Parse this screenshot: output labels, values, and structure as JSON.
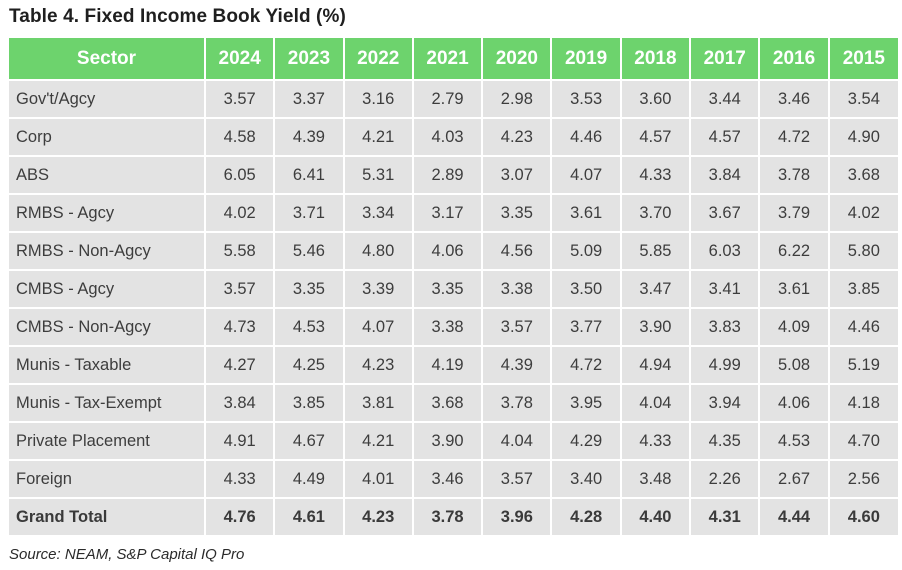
{
  "title": "Table 4. Fixed Income Book Yield (%)",
  "source": "Source: NEAM, S&P Capital IQ Pro",
  "colors": {
    "header_bg": "#6dd36d",
    "header_text": "#ffffff",
    "cell_bg": "#e3e3e3"
  },
  "table": {
    "headers": [
      "Sector",
      "2024",
      "2023",
      "2022",
      "2021",
      "2020",
      "2019",
      "2018",
      "2017",
      "2016",
      "2015"
    ],
    "rows": [
      {
        "sector": "Gov't/Agcy",
        "values": [
          "3.57",
          "3.37",
          "3.16",
          "2.79",
          "2.98",
          "3.53",
          "3.60",
          "3.44",
          "3.46",
          "3.54"
        ]
      },
      {
        "sector": "Corp",
        "values": [
          "4.58",
          "4.39",
          "4.21",
          "4.03",
          "4.23",
          "4.46",
          "4.57",
          "4.57",
          "4.72",
          "4.90"
        ]
      },
      {
        "sector": "ABS",
        "values": [
          "6.05",
          "6.41",
          "5.31",
          "2.89",
          "3.07",
          "4.07",
          "4.33",
          "3.84",
          "3.78",
          "3.68"
        ]
      },
      {
        "sector": "RMBS - Agcy",
        "values": [
          "4.02",
          "3.71",
          "3.34",
          "3.17",
          "3.35",
          "3.61",
          "3.70",
          "3.67",
          "3.79",
          "4.02"
        ]
      },
      {
        "sector": "RMBS - Non-Agcy",
        "values": [
          "5.58",
          "5.46",
          "4.80",
          "4.06",
          "4.56",
          "5.09",
          "5.85",
          "6.03",
          "6.22",
          "5.80"
        ]
      },
      {
        "sector": "CMBS - Agcy",
        "values": [
          "3.57",
          "3.35",
          "3.39",
          "3.35",
          "3.38",
          "3.50",
          "3.47",
          "3.41",
          "3.61",
          "3.85"
        ]
      },
      {
        "sector": "CMBS - Non-Agcy",
        "values": [
          "4.73",
          "4.53",
          "4.07",
          "3.38",
          "3.57",
          "3.77",
          "3.90",
          "3.83",
          "4.09",
          "4.46"
        ]
      },
      {
        "sector": "Munis - Taxable",
        "values": [
          "4.27",
          "4.25",
          "4.23",
          "4.19",
          "4.39",
          "4.72",
          "4.94",
          "4.99",
          "5.08",
          "5.19"
        ]
      },
      {
        "sector": "Munis - Tax-Exempt",
        "values": [
          "3.84",
          "3.85",
          "3.81",
          "3.68",
          "3.78",
          "3.95",
          "4.04",
          "3.94",
          "4.06",
          "4.18"
        ]
      },
      {
        "sector": "Private Placement",
        "values": [
          "4.91",
          "4.67",
          "4.21",
          "3.90",
          "4.04",
          "4.29",
          "4.33",
          "4.35",
          "4.53",
          "4.70"
        ]
      },
      {
        "sector": "Foreign",
        "values": [
          "4.33",
          "4.49",
          "4.01",
          "3.46",
          "3.57",
          "3.40",
          "3.48",
          "2.26",
          "2.67",
          "2.56"
        ]
      }
    ],
    "total": {
      "sector": "Grand Total",
      "values": [
        "4.76",
        "4.61",
        "4.23",
        "3.78",
        "3.96",
        "4.28",
        "4.40",
        "4.31",
        "4.44",
        "4.60"
      ]
    }
  }
}
